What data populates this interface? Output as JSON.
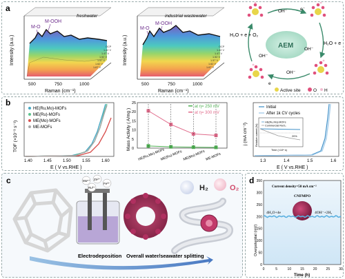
{
  "panel_a": {
    "letter": "a",
    "plot1_title": "freshwater",
    "plot2_title": "industrial wastewater",
    "ylabel": "Intensity (a.u.)",
    "xlabel": "Raman (cm⁻¹)",
    "xticks": [
      "500",
      "750",
      "1000"
    ],
    "peak_mo": "M-O",
    "peak_mooh": "M-OOH",
    "voltages": [
      "OCP",
      "1.42 V",
      "1.47 V",
      "1.52 V",
      "1.57 V",
      "1.62 V",
      "1.67 V"
    ],
    "aem_label": "AEM",
    "eq_left": "H₂O + e + O₂",
    "eq_right": "H₂O + e",
    "oh1": "OH⁻",
    "oh2": "OH⁻",
    "oh3": "OH⁻",
    "oh4": "OH⁻",
    "e1": "e⁻",
    "e2": "e",
    "legend_active": "Active site",
    "legend_o": "O",
    "legend_h": "H",
    "colors": {
      "active": "#e8d64a",
      "oxygen": "#e0507c",
      "hydrogen": "#f2bcd0",
      "arrow": "#3a8a6a"
    }
  },
  "panel_b": {
    "letter": "b",
    "tof": {
      "ylabel": "TOF (×10⁻³ s⁻¹)",
      "xlabel": "E ( V vs.RHE )",
      "xticks": [
        "1.40",
        "1.45",
        "1.50",
        "1.55",
        "1.60"
      ],
      "legend": [
        "HE(Ru,Mo)-MOFs",
        "ME(Ru)-MOFs",
        "ME(Mo)-MOFs",
        "ME-MOFs"
      ],
      "colors": [
        "#48a9c4",
        "#5cc48e",
        "#d8504e",
        "#a8a8a8"
      ]
    },
    "mass": {
      "ylabel": "Mass Activity ( A/mg )",
      "yticks": [
        "0",
        "5",
        "10",
        "15",
        "20",
        "25"
      ],
      "categories": [
        "HE(Ru,Mo)-MOFs",
        "ME(Ru)-MOFs",
        "ME(Mo)-MOFs",
        "ME-MOFs"
      ],
      "series": [
        {
          "name": "at η= 250 mV",
          "values": [
            1.2,
            0.7,
            0.5,
            0.4
          ],
          "color": "#4caf50"
        },
        {
          "name": "at η= 300 mV",
          "values": [
            20.5,
            13.0,
            7.8,
            7.0
          ],
          "color": "#e06a8a"
        }
      ],
      "ylim": [
        0,
        25
      ]
    },
    "lsv": {
      "ylabel": "j (mA cm⁻²)",
      "xlabel": "E ( V vs.RHE )",
      "xticks": [
        "1.3",
        "1.4",
        "1.5",
        "1.6"
      ],
      "legend": [
        "Initial",
        "After 1k CV cycles"
      ],
      "colors": [
        "#3e8fc7",
        "#9cc7e8"
      ],
      "inset_ylabel": "Relative current (%)",
      "inset_xlabel": "Time (×10⁴ s)",
      "inset_legend": [
        "HE(Ru,Mo)-MOFs",
        "Commercial RuO₂"
      ],
      "inset_note": "20%"
    }
  },
  "panel_c": {
    "letter": "c",
    "ions": [
      "Mo⁶⁺",
      "Zn²⁺",
      "Ru³⁺",
      "Fe³⁺"
    ],
    "step1": "Electrodeposition",
    "step2": "Overall water/seawater splitting",
    "h2": "H₂",
    "o2": "O₂"
  },
  "panel_d": {
    "letter": "d",
    "title": "Current density=50 mA cm⁻²",
    "catalyst": "CNFMPO",
    "ylabel": "Overpotential (mV)",
    "xlabel": "Time (h)",
    "yticks": [
      "0",
      "50",
      "100",
      "150",
      "200",
      "250",
      "300",
      "350"
    ],
    "xticks": [
      "0",
      "5",
      "10",
      "15",
      "20",
      "25",
      "30"
    ],
    "eq_left": "4H₂O+4e",
    "eq_right": "4OH⁻+2H₂",
    "level": 200,
    "line_color": "#5ab0e0"
  }
}
